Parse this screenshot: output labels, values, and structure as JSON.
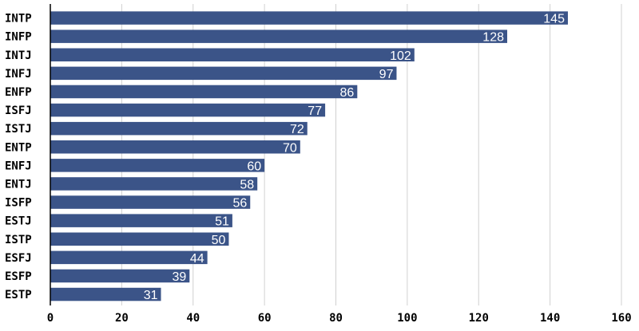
{
  "chart_data": {
    "type": "bar",
    "orientation": "horizontal",
    "categories": [
      "INTP",
      "INFP",
      "INTJ",
      "INFJ",
      "ENFP",
      "ISFJ",
      "ISTJ",
      "ENTP",
      "ENFJ",
      "ENTJ",
      "ISFP",
      "ESTJ",
      "ISTP",
      "ESFJ",
      "ESFP",
      "ESTP"
    ],
    "values": [
      145,
      128,
      102,
      97,
      86,
      77,
      72,
      70,
      60,
      58,
      56,
      51,
      50,
      44,
      39,
      31
    ],
    "xticks": [
      "0",
      "20",
      "40",
      "60",
      "80",
      "100",
      "120",
      "140",
      "160"
    ],
    "xlim": [
      0,
      160
    ],
    "title": "",
    "xlabel": "",
    "ylabel": "",
    "grid": "vertical",
    "bar_color": "#3b5488",
    "value_label_color": "#ffffff"
  }
}
